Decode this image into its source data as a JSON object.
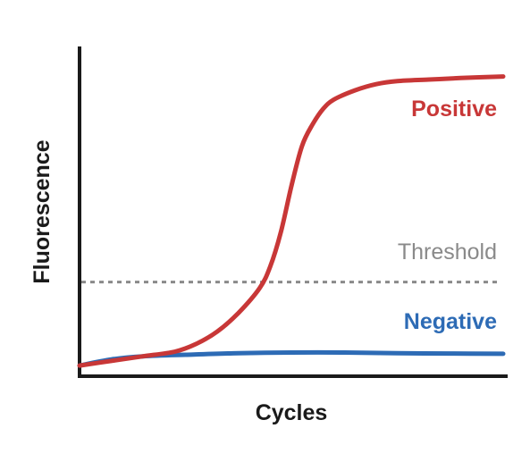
{
  "chart_data": {
    "type": "line",
    "xlabel": "Cycles",
    "ylabel": "Fluorescence",
    "xlim": [
      0,
      40
    ],
    "ylim": [
      0,
      100
    ],
    "grid": false,
    "series": [
      {
        "name": "Positive",
        "color": "#c83737",
        "x": [
          0,
          3,
          6,
          9,
          11,
          13,
          15,
          17,
          18,
          19,
          20,
          21,
          22,
          23,
          24,
          26,
          28,
          30,
          33,
          36,
          40
        ],
        "values": [
          2,
          3.5,
          5,
          6.5,
          9,
          13,
          19,
          27,
          34,
          45,
          60,
          73,
          80,
          85,
          88,
          91,
          93,
          94,
          94.5,
          95,
          95.5
        ]
      },
      {
        "name": "Negative",
        "color": "#2d6bb5",
        "x": [
          0,
          3,
          6,
          10,
          15,
          20,
          25,
          30,
          35,
          40
        ],
        "values": [
          2,
          4,
          5,
          5.5,
          6,
          6.2,
          6.2,
          6,
          5.9,
          5.8
        ]
      }
    ],
    "threshold": {
      "label": "Threshold",
      "value": 29,
      "color": "#8a8a8a"
    }
  }
}
